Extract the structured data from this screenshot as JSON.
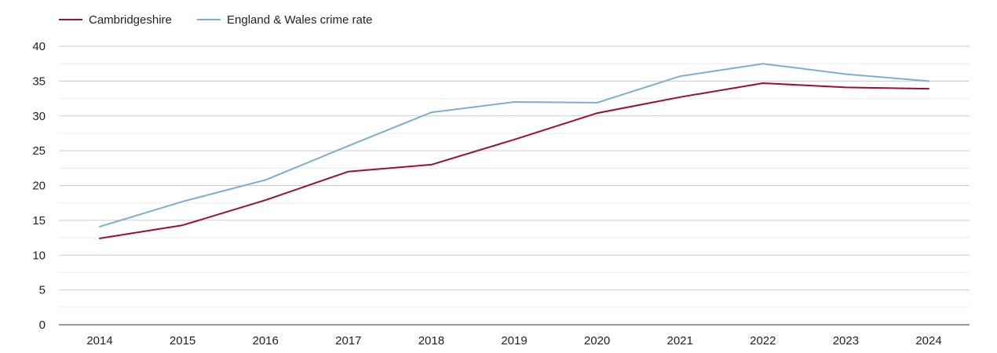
{
  "chart_data": {
    "type": "line",
    "categories": [
      "2014",
      "2015",
      "2016",
      "2017",
      "2018",
      "2019",
      "2020",
      "2021",
      "2022",
      "2023",
      "2024"
    ],
    "series": [
      {
        "name": "Cambridgeshire",
        "color": "#9e0e2e",
        "values": [
          12.4,
          14.3,
          17.9,
          22.0,
          23.0,
          26.6,
          30.4,
          32.7,
          34.7,
          34.1,
          33.9
        ]
      },
      {
        "name": "England & Wales crime rate",
        "color": "#7aafd0",
        "values": [
          14.1,
          17.7,
          20.8,
          25.7,
          30.5,
          32.0,
          31.9,
          35.7,
          37.5,
          36.0,
          35.0
        ]
      }
    ],
    "yticks": [
      0,
      5,
      10,
      15,
      20,
      25,
      30,
      35,
      40
    ],
    "ylim": [
      0,
      40
    ],
    "grid": true,
    "legend_position": "top-left",
    "title": "",
    "xlabel": "",
    "ylabel": ""
  }
}
